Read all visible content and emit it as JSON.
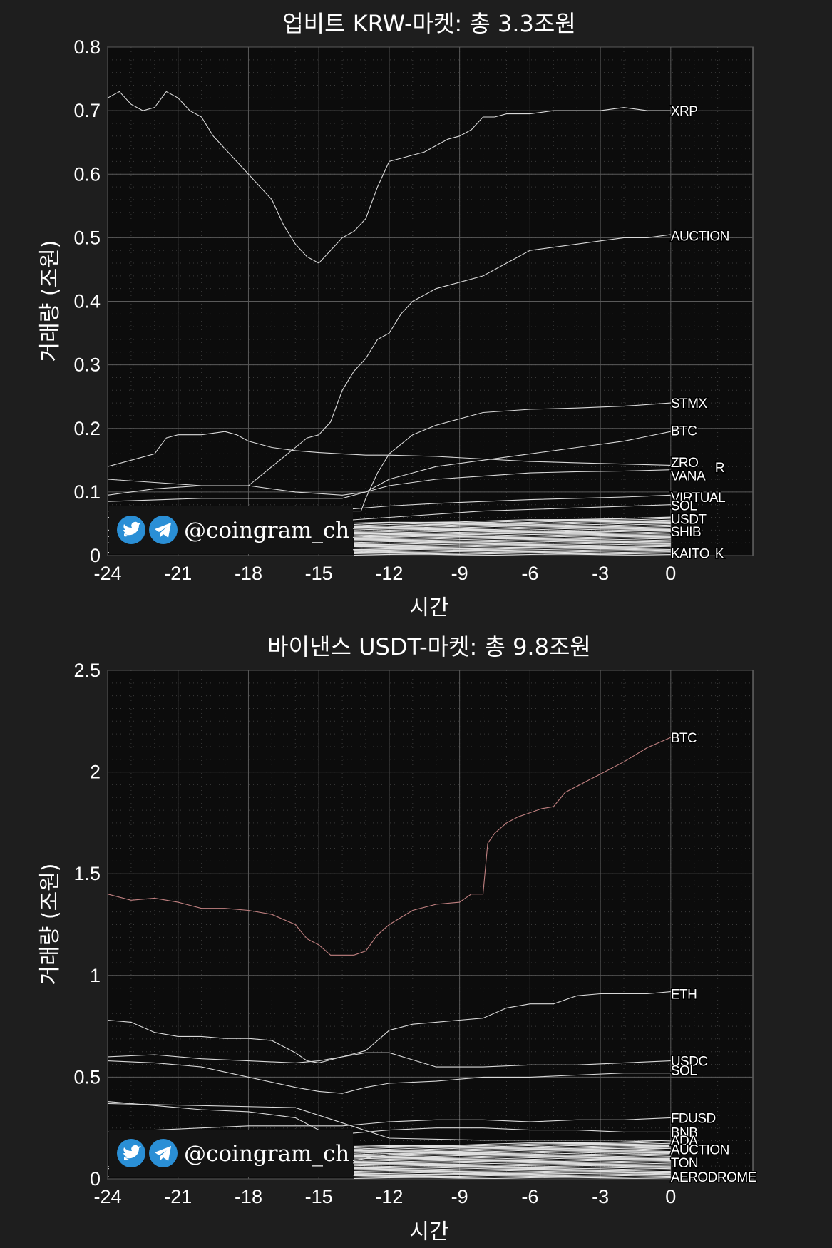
{
  "watermark": {
    "handle": "@coingram_ch",
    "icons": [
      "twitter-bird-icon",
      "telegram-plane-icon"
    ]
  },
  "colors": {
    "background": "#1e1e1e",
    "plot_bg": "#0c0c0c",
    "line": "#d9d9d9",
    "btc_binance": "#c08080"
  },
  "chart_data": [
    {
      "type": "line",
      "title": "업비트 KRW-마켓: 총 3.3조원",
      "xlabel": "시간",
      "ylabel": "거래량 (조원)",
      "xlim": [
        -24,
        3.5
      ],
      "ylim": [
        0,
        0.8
      ],
      "xticks": [
        "-24",
        "-21",
        "-18",
        "-15",
        "-12",
        "-9",
        "-6",
        "-3",
        "0"
      ],
      "yticks": [
        "0",
        "0.1",
        "0.2",
        "0.3",
        "0.4",
        "0.5",
        "0.6",
        "0.7",
        "0.8"
      ],
      "grid": true,
      "series": [
        {
          "name": "XRP",
          "x": [
            -24,
            -23.5,
            -23,
            -22.5,
            -22,
            -21.5,
            -21,
            -20.5,
            -20,
            -19.5,
            -19,
            -18.5,
            -18,
            -17.5,
            -17,
            -16.5,
            -16,
            -15.5,
            -15,
            -14.5,
            -14,
            -13.5,
            -13,
            -12.5,
            -12,
            -11.5,
            -11,
            -10.5,
            -10,
            -9.5,
            -9,
            -8.5,
            -8,
            -7.5,
            -7,
            -6,
            -5,
            -4,
            -3,
            -2,
            -1,
            0
          ],
          "y": [
            0.72,
            0.73,
            0.71,
            0.7,
            0.705,
            0.73,
            0.72,
            0.7,
            0.69,
            0.66,
            0.64,
            0.62,
            0.6,
            0.58,
            0.56,
            0.52,
            0.49,
            0.47,
            0.46,
            0.48,
            0.5,
            0.51,
            0.53,
            0.58,
            0.62,
            0.625,
            0.63,
            0.635,
            0.645,
            0.655,
            0.66,
            0.67,
            0.69,
            0.69,
            0.695,
            0.695,
            0.7,
            0.7,
            0.7,
            0.705,
            0.7,
            0.7
          ],
          "color": "#d9d9d9"
        },
        {
          "name": "AUCTION",
          "x": [
            -24,
            -22,
            -20,
            -18,
            -17,
            -16,
            -15.5,
            -15,
            -14.5,
            -14,
            -13.5,
            -13,
            -12.5,
            -12,
            -11.5,
            -11,
            -10.5,
            -10,
            -9,
            -8,
            -7,
            -6,
            -5,
            -4,
            -3,
            -2,
            -1,
            0
          ],
          "y": [
            0.12,
            0.115,
            0.11,
            0.11,
            0.14,
            0.17,
            0.185,
            0.19,
            0.21,
            0.26,
            0.29,
            0.31,
            0.34,
            0.35,
            0.38,
            0.4,
            0.41,
            0.42,
            0.43,
            0.44,
            0.46,
            0.48,
            0.485,
            0.49,
            0.495,
            0.5,
            0.5,
            0.505
          ],
          "color": "#d9d9d9"
        },
        {
          "name": "STMX",
          "x": [
            -24,
            -20,
            -18,
            -16,
            -14,
            -13.2,
            -13,
            -12.5,
            -12,
            -11,
            -10,
            -9,
            -8,
            -6,
            -4,
            -2,
            0
          ],
          "y": [
            0.07,
            0.07,
            0.07,
            0.07,
            0.07,
            0.07,
            0.09,
            0.13,
            0.16,
            0.19,
            0.205,
            0.215,
            0.225,
            0.23,
            0.232,
            0.235,
            0.24
          ],
          "color": "#d9d9d9"
        },
        {
          "name": "BTC",
          "x": [
            -24,
            -22,
            -20,
            -18,
            -16,
            -14,
            -13,
            -12,
            -11,
            -10,
            -8,
            -6,
            -4,
            -2,
            0
          ],
          "y": [
            0.095,
            0.105,
            0.11,
            0.11,
            0.1,
            0.095,
            0.1,
            0.12,
            0.13,
            0.14,
            0.15,
            0.16,
            0.17,
            0.18,
            0.195
          ],
          "color": "#d9d9d9"
        },
        {
          "name": "ZRO",
          "x": [
            -24,
            -23,
            -22,
            -21.5,
            -21,
            -20,
            -19,
            -18.5,
            -18,
            -17.5,
            -17,
            -16,
            -15,
            -14,
            -13,
            -12,
            -10,
            -8,
            -6,
            -4,
            -2,
            0
          ],
          "y": [
            0.14,
            0.15,
            0.16,
            0.185,
            0.19,
            0.19,
            0.195,
            0.19,
            0.18,
            0.175,
            0.17,
            0.165,
            0.162,
            0.16,
            0.158,
            0.158,
            0.156,
            0.152,
            0.148,
            0.146,
            0.144,
            0.142
          ],
          "color": "#d9d9d9"
        },
        {
          "name": "VANA",
          "x": [
            -24,
            -20,
            -18,
            -16,
            -14,
            -13,
            -12,
            -10,
            -8,
            -6,
            -4,
            -2,
            0
          ],
          "y": [
            0.085,
            0.09,
            0.09,
            0.09,
            0.09,
            0.1,
            0.11,
            0.12,
            0.125,
            0.13,
            0.132,
            0.133,
            0.135
          ],
          "color": "#d9d9d9"
        },
        {
          "name": "VIRTUAL",
          "x": [
            -24,
            -20,
            -16,
            -14,
            -12,
            -10,
            -8,
            -6,
            -4,
            -2,
            0
          ],
          "y": [
            0.06,
            0.065,
            0.07,
            0.072,
            0.078,
            0.082,
            0.085,
            0.088,
            0.09,
            0.092,
            0.095
          ],
          "color": "#d9d9d9"
        },
        {
          "name": "SOL",
          "x": [
            -24,
            -20,
            -16,
            -12,
            -8,
            -4,
            0
          ],
          "y": [
            0.04,
            0.045,
            0.05,
            0.06,
            0.07,
            0.075,
            0.08
          ],
          "color": "#d9d9d9"
        },
        {
          "name": "USDT",
          "x": [
            -24,
            -18,
            -12,
            -6,
            0
          ],
          "y": [
            0.03,
            0.035,
            0.045,
            0.055,
            0.06
          ],
          "color": "#d9d9d9"
        },
        {
          "name": "SHIB",
          "x": [
            -24,
            -18,
            -12,
            -6,
            0
          ],
          "y": [
            0.02,
            0.025,
            0.03,
            0.036,
            0.04
          ],
          "color": "#d9d9d9"
        },
        {
          "name": "KAITO",
          "x": [
            -24,
            -18,
            -12,
            -6,
            0
          ],
          "y": [
            0.005,
            0.007,
            0.01,
            0.013,
            0.015
          ],
          "color": "#d9d9d9"
        }
      ],
      "end_labels": [
        {
          "text": "XRP",
          "y": 0.7
        },
        {
          "text": "AUCTION",
          "y": 0.503
        },
        {
          "text": "STMX",
          "y": 0.24
        },
        {
          "text": "BTC",
          "y": 0.197
        },
        {
          "text": "ZRO",
          "y": 0.147
        },
        {
          "text": "R",
          "y": 0.139
        },
        {
          "text": "VANA",
          "y": 0.126
        },
        {
          "text": "VIRTUAL",
          "y": 0.092
        },
        {
          "text": "SOL",
          "y": 0.079
        },
        {
          "text": "USDT",
          "y": 0.058
        },
        {
          "text": "SHIB",
          "y": 0.038
        },
        {
          "text": "KAITO",
          "y": 0.004
        },
        {
          "text": "K",
          "y": 0.004
        }
      ]
    },
    {
      "type": "line",
      "title": "바이낸스 USDT-마켓: 총 9.8조원",
      "xlabel": "시간",
      "ylabel": "거래량 (조원)",
      "xlim": [
        -24,
        3.5
      ],
      "ylim": [
        0,
        2.5
      ],
      "xticks": [
        "-24",
        "-21",
        "-18",
        "-15",
        "-12",
        "-9",
        "-6",
        "-3",
        "0"
      ],
      "yticks": [
        "0",
        "0.5",
        "1",
        "1.5",
        "2",
        "2.5"
      ],
      "grid": true,
      "series": [
        {
          "name": "BTC",
          "x": [
            -24,
            -23,
            -22,
            -21,
            -20,
            -19,
            -18,
            -17,
            -16,
            -15.5,
            -15,
            -14.5,
            -14,
            -13.5,
            -13,
            -12.5,
            -12,
            -11,
            -10,
            -9,
            -8.5,
            -8,
            -7.8,
            -7.5,
            -7,
            -6.5,
            -6,
            -5.5,
            -5,
            -4.5,
            -4,
            -3.5,
            -3,
            -2,
            -1,
            0
          ],
          "y": [
            1.4,
            1.37,
            1.38,
            1.36,
            1.33,
            1.33,
            1.32,
            1.3,
            1.25,
            1.18,
            1.15,
            1.1,
            1.1,
            1.1,
            1.12,
            1.2,
            1.25,
            1.32,
            1.35,
            1.36,
            1.4,
            1.4,
            1.65,
            1.7,
            1.75,
            1.78,
            1.8,
            1.82,
            1.83,
            1.9,
            1.93,
            1.96,
            1.99,
            2.05,
            2.12,
            2.17
          ],
          "color": "#c08080"
        },
        {
          "name": "ETH",
          "x": [
            -24,
            -23,
            -22,
            -21,
            -20,
            -19,
            -18,
            -17,
            -16,
            -15.5,
            -15,
            -14,
            -13,
            -12.5,
            -12,
            -11,
            -10,
            -9,
            -8,
            -7,
            -6,
            -5,
            -4,
            -3,
            -2,
            -1,
            0
          ],
          "y": [
            0.78,
            0.77,
            0.72,
            0.7,
            0.7,
            0.69,
            0.69,
            0.68,
            0.62,
            0.58,
            0.57,
            0.6,
            0.63,
            0.68,
            0.73,
            0.76,
            0.77,
            0.78,
            0.79,
            0.84,
            0.86,
            0.86,
            0.9,
            0.91,
            0.91,
            0.91,
            0.92
          ],
          "color": "#d9d9d9"
        },
        {
          "name": "USDC",
          "x": [
            -24,
            -22,
            -20,
            -18,
            -16,
            -15,
            -14,
            -13,
            -12,
            -10,
            -8,
            -6,
            -4,
            -2,
            0
          ],
          "y": [
            0.6,
            0.61,
            0.59,
            0.58,
            0.57,
            0.58,
            0.6,
            0.62,
            0.62,
            0.55,
            0.55,
            0.56,
            0.56,
            0.57,
            0.58
          ],
          "color": "#d9d9d9"
        },
        {
          "name": "SOL",
          "x": [
            -24,
            -22,
            -20,
            -18,
            -16,
            -15,
            -14,
            -13,
            -12,
            -10,
            -8,
            -6,
            -4,
            -2,
            0
          ],
          "y": [
            0.58,
            0.57,
            0.55,
            0.5,
            0.45,
            0.43,
            0.42,
            0.45,
            0.47,
            0.48,
            0.5,
            0.5,
            0.51,
            0.52,
            0.52
          ],
          "color": "#d9d9d9"
        },
        {
          "name": "FDUSD",
          "x": [
            -24,
            -20,
            -18,
            -16,
            -14,
            -12,
            -10,
            -8,
            -6,
            -4,
            -2,
            0
          ],
          "y": [
            0.23,
            0.25,
            0.26,
            0.26,
            0.26,
            0.28,
            0.29,
            0.29,
            0.28,
            0.29,
            0.29,
            0.3
          ],
          "color": "#d9d9d9"
        },
        {
          "name": "BNB",
          "x": [
            -24,
            -22,
            -20,
            -18,
            -16,
            -15,
            -14,
            -12,
            -10,
            -8,
            -6,
            -4,
            -2,
            0
          ],
          "y": [
            0.38,
            0.36,
            0.34,
            0.33,
            0.3,
            0.24,
            0.22,
            0.24,
            0.25,
            0.25,
            0.24,
            0.24,
            0.23,
            0.23
          ],
          "color": "#d9d9d9"
        },
        {
          "name": "ADA",
          "x": [
            -24,
            -20,
            -16,
            -12,
            -8,
            -4,
            0
          ],
          "y": [
            0.37,
            0.36,
            0.35,
            0.2,
            0.19,
            0.19,
            0.19
          ],
          "color": "#d9d9d9"
        },
        {
          "name": "AUCTION",
          "x": [
            -24,
            -18,
            -14,
            -12,
            -8,
            -4,
            0
          ],
          "y": [
            0.05,
            0.06,
            0.08,
            0.12,
            0.14,
            0.15,
            0.15
          ],
          "color": "#d9d9d9"
        },
        {
          "name": "TON",
          "x": [
            -24,
            -18,
            -12,
            -6,
            0
          ],
          "y": [
            0.06,
            0.07,
            0.08,
            0.09,
            0.1
          ],
          "color": "#d9d9d9"
        },
        {
          "name": "AERODROME",
          "x": [
            -24,
            -18,
            -12,
            -6,
            0
          ],
          "y": [
            0.01,
            0.015,
            0.02,
            0.025,
            0.03
          ],
          "color": "#d9d9d9"
        }
      ],
      "end_labels": [
        {
          "text": "BTC",
          "y": 2.17
        },
        {
          "text": "ETH",
          "y": 0.91
        },
        {
          "text": "USDC",
          "y": 0.58
        },
        {
          "text": "SOL",
          "y": 0.535
        },
        {
          "text": "FDUSD",
          "y": 0.3
        },
        {
          "text": "BNB",
          "y": 0.23
        },
        {
          "text": "ADA",
          "y": 0.19
        },
        {
          "text": "AUCTION",
          "y": 0.145
        },
        {
          "text": "TON",
          "y": 0.08
        },
        {
          "text": "AERODROME",
          "y": 0.01
        }
      ]
    }
  ]
}
